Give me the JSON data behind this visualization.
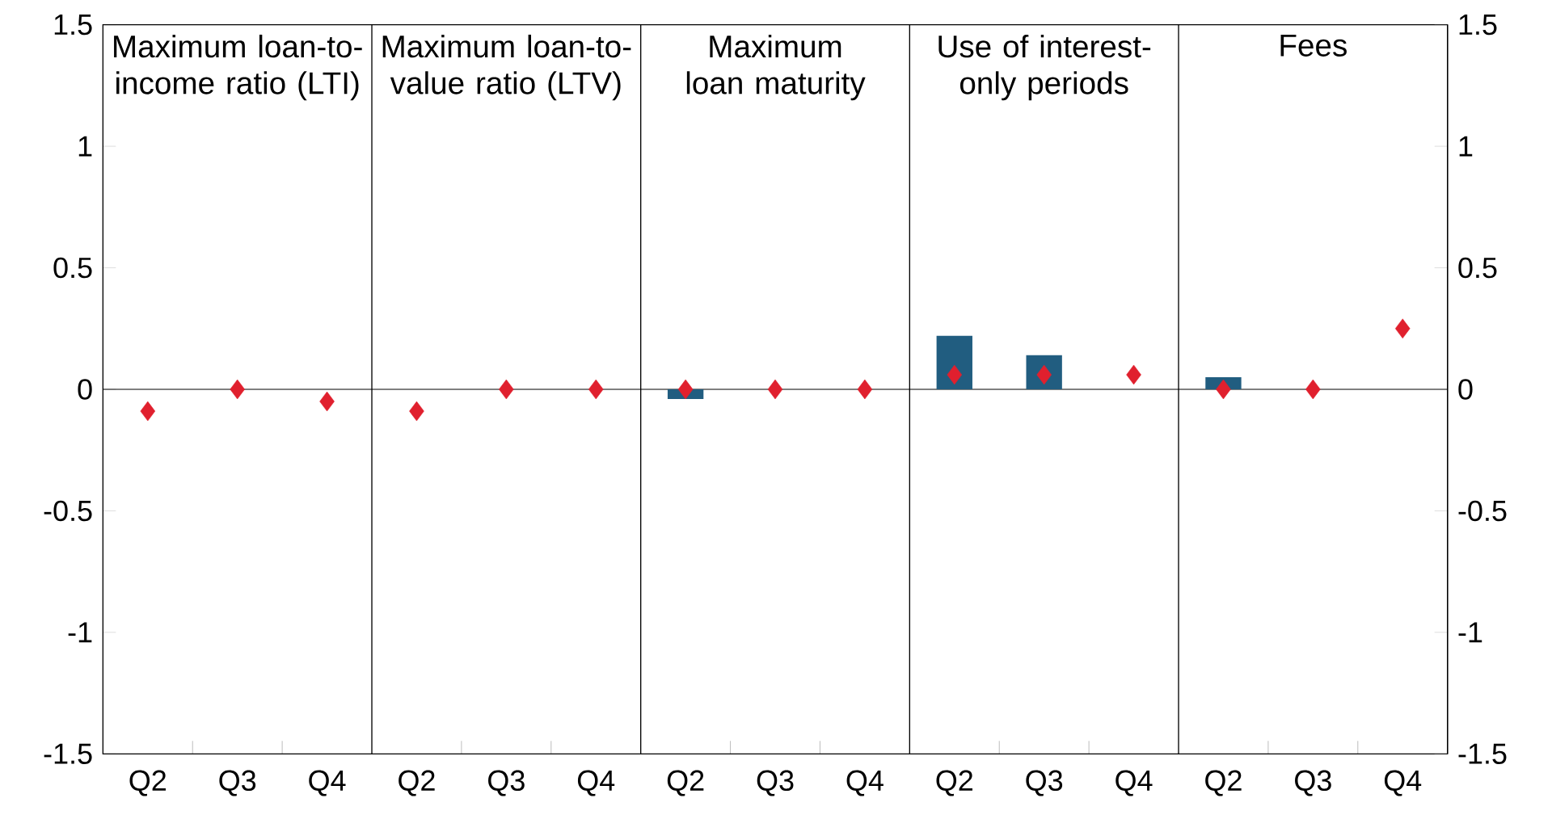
{
  "chart_data": {
    "type": "bar",
    "categories": [
      "Q2",
      "Q3",
      "Q4",
      "Q2",
      "Q3",
      "Q4",
      "Q2",
      "Q3",
      "Q4",
      "Q2",
      "Q3",
      "Q4",
      "Q2",
      "Q3",
      "Q4"
    ],
    "series": [
      {
        "color": "#215d80",
        "values": [
          null,
          null,
          null,
          null,
          null,
          null,
          -0.04,
          null,
          null,
          0.22,
          0.14,
          null,
          0.05,
          null,
          null
        ]
      },
      {
        "type": "scatter",
        "color": "#e0202e",
        "marker": "diamond",
        "values": [
          -0.09,
          0,
          -0.05,
          -0.09,
          0,
          0,
          0,
          0,
          0,
          0.06,
          0.06,
          0.06,
          0,
          0,
          0.25
        ]
      }
    ],
    "ylim": [
      -1.5,
      1.5
    ],
    "yticks": [
      -1.5,
      -1,
      -0.5,
      0,
      0.5,
      1,
      1.5
    ],
    "y2lim": [
      -1.5,
      1.5
    ],
    "y2ticks": [
      -1.5,
      -1,
      -0.5,
      0,
      0.5,
      1,
      1.5
    ],
    "annotations": [
      "Maximum loan-to-income ratio (LTI)",
      "Maximum loan-to-value ratio (LTV)",
      "Maximum loan maturity",
      "Use of interest-only periods",
      "Fees"
    ],
    "grid": false
  }
}
